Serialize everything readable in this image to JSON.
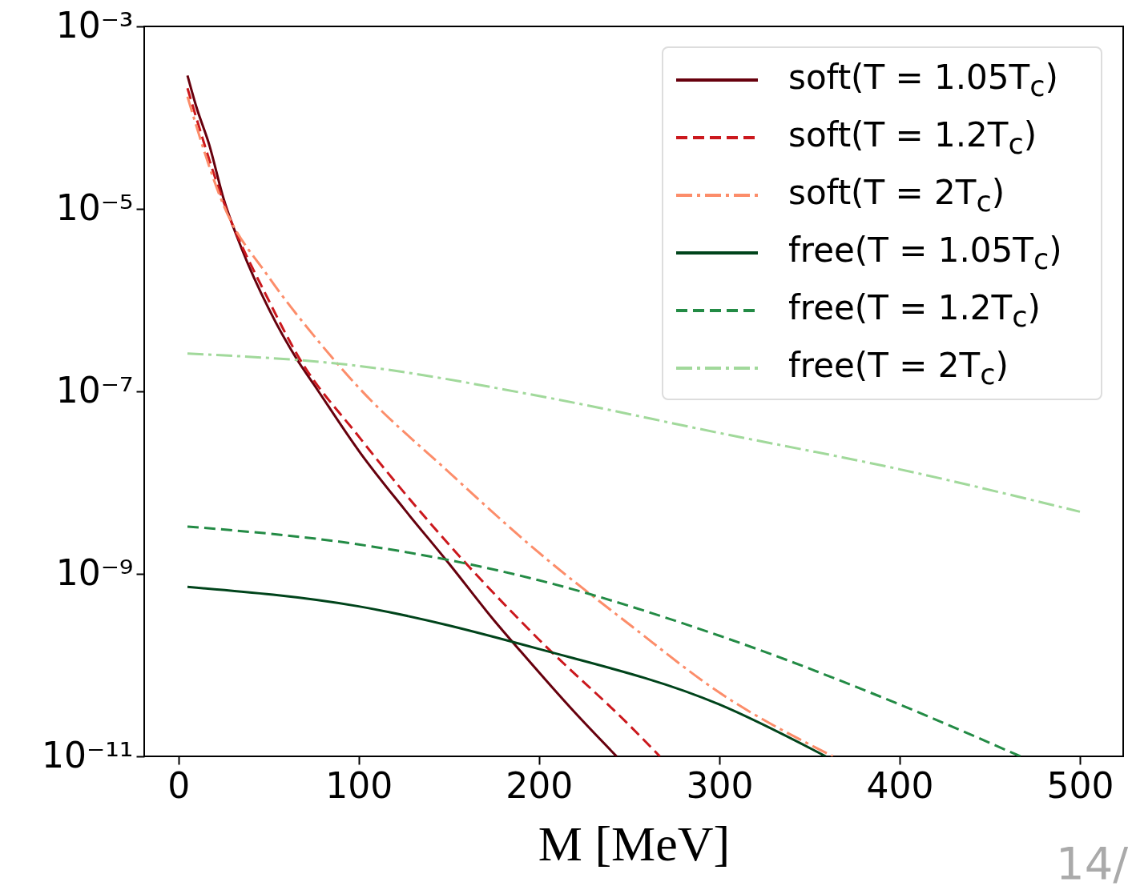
{
  "chart_data": {
    "type": "line",
    "xlabel": "M [MeV]",
    "log": "y",
    "grid": false,
    "legend": "top right",
    "xlim": [
      -19,
      524
    ],
    "xticks": [
      0,
      100,
      200,
      300,
      400,
      500
    ],
    "ylim": [
      1e-11,
      0.001
    ],
    "yticks": [
      {
        "value": 0.001,
        "label": "10⁻³"
      },
      {
        "value": 1e-05,
        "label": "10⁻⁵"
      },
      {
        "value": 1e-07,
        "label": "10⁻⁷"
      },
      {
        "value": 1e-09,
        "label": "10⁻⁹"
      },
      {
        "value": 1e-11,
        "label": "10⁻¹¹"
      }
    ],
    "series": [
      {
        "name": "soft(T = 1.05T$_{c}$)",
        "color": "#67000d",
        "line_style": "solid",
        "x": [
          5,
          10,
          17,
          25,
          35,
          50,
          66,
          75,
          101,
          125,
          150,
          175,
          190,
          220,
          243
        ],
        "values": [
          0.00029,
          0.00013,
          5.1e-05,
          1.3e-05,
          3.7e-06,
          8.1e-07,
          2.2e-07,
          1.2e-07,
          2.1e-08,
          5.2e-09,
          1.3e-09,
          3.1e-10,
          1.4e-10,
          3e-11,
          1e-11
        ]
      },
      {
        "name": "soft(T = 1.2T$_{c}$)",
        "color": "#cb181d",
        "line_style": "dashed",
        "x": [
          5,
          25,
          50,
          66,
          100,
          150,
          200,
          250,
          267
        ],
        "values": [
          0.00021,
          1.2e-05,
          1e-06,
          2.5e-07,
          3.2e-08,
          2.1e-09,
          1.9e-10,
          2.2e-11,
          1e-11
        ]
      },
      {
        "name": "soft(T = 2T$_{c}$)",
        "color": "#fc8d6a",
        "line_style": "dashdot",
        "x": [
          5,
          25,
          50,
          75,
          100,
          150,
          200,
          250,
          300,
          363
        ],
        "values": [
          0.00017,
          1.1e-05,
          1.8e-06,
          4.1e-07,
          1.1e-07,
          1.3e-08,
          1.7e-09,
          2.8e-10,
          5e-11,
          1e-11
        ]
      },
      {
        "name": "free(T = 1.05T$_{c}$)",
        "color": "#00441b",
        "line_style": "solid",
        "x": [
          5,
          100,
          200,
          300,
          359
        ],
        "values": [
          7.2e-10,
          4.4e-10,
          1.5e-10,
          3.7e-11,
          1e-11
        ]
      },
      {
        "name": "free(T = 1.2T$_{c}$)",
        "color": "#238b45",
        "line_style": "dashed",
        "x": [
          5,
          100,
          200,
          300,
          400,
          467
        ],
        "values": [
          3.3e-09,
          2.1e-09,
          8.5e-10,
          2.1e-10,
          3.7e-11,
          1e-11
        ]
      },
      {
        "name": "free(T = 2T$_{c}$)",
        "color": "#a1d99b",
        "line_style": "dashdot",
        "x": [
          5,
          100,
          200,
          300,
          400,
          500
        ],
        "values": [
          2.6e-07,
          1.9e-07,
          8.9e-08,
          3.5e-08,
          1.4e-08,
          4.8e-09
        ]
      }
    ],
    "annotations": [
      "14/"
    ]
  }
}
